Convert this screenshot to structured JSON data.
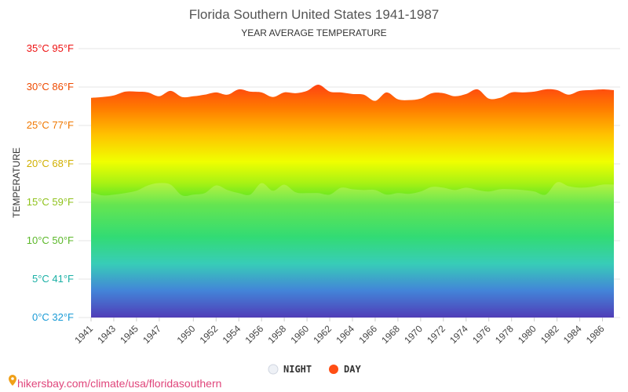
{
  "chart_data": {
    "type": "area",
    "title": "Florida Southern United States 1941-1987",
    "subtitle": "YEAR AVERAGE TEMPERATURE",
    "ylabel": "TEMPERATURE",
    "ylim": [
      0,
      35
    ],
    "y_ticks": [
      {
        "label": "0°C 32°F",
        "color": "#1a9bd6"
      },
      {
        "label": "5°C 41°F",
        "color": "#1ab0a5"
      },
      {
        "label": "10°C 50°F",
        "color": "#5cb82a"
      },
      {
        "label": "15°C 59°F",
        "color": "#8fc21c"
      },
      {
        "label": "20°C 68°F",
        "color": "#d1b000"
      },
      {
        "label": "25°C 77°F",
        "color": "#f07800"
      },
      {
        "label": "30°C 86°F",
        "color": "#ee4a00"
      },
      {
        "label": "35°C 95°F",
        "color": "#ee1111"
      }
    ],
    "x_tick_labels": [
      "1941",
      "1943",
      "1945",
      "1947",
      "1950",
      "1952",
      "1954",
      "1956",
      "1958",
      "1960",
      "1962",
      "1964",
      "1966",
      "1968",
      "1970",
      "1972",
      "1974",
      "1976",
      "1978",
      "1980",
      "1982",
      "1984",
      "1986"
    ],
    "x": [
      "1941",
      "1942",
      "1943",
      "1944",
      "1945",
      "1946",
      "1947",
      "1948",
      "1949",
      "1950",
      "1951",
      "1952",
      "1953",
      "1954",
      "1955",
      "1956",
      "1957",
      "1958",
      "1959",
      "1960",
      "1961",
      "1962",
      "1963",
      "1964",
      "1965",
      "1966",
      "1967",
      "1968",
      "1969",
      "1970",
      "1971",
      "1972",
      "1973",
      "1974",
      "1975",
      "1976",
      "1977",
      "1978",
      "1979",
      "1980",
      "1981",
      "1982",
      "1983",
      "1984",
      "1985",
      "1986",
      "1987"
    ],
    "series": [
      {
        "name": "NIGHT",
        "color": "#dde3ee",
        "values": [
          16.3,
          15.9,
          16.0,
          16.2,
          16.5,
          17.2,
          17.5,
          17.3,
          15.9,
          16.0,
          16.2,
          17.2,
          16.6,
          16.2,
          16.0,
          17.5,
          16.5,
          17.3,
          16.3,
          16.2,
          16.2,
          16.0,
          16.9,
          16.7,
          16.6,
          16.6,
          16.0,
          16.2,
          16.1,
          16.4,
          17.0,
          16.9,
          16.6,
          16.9,
          16.6,
          16.4,
          16.7,
          16.7,
          16.6,
          16.4,
          16.0,
          17.6,
          17.1,
          16.9,
          17.0,
          17.3,
          17.3
        ]
      },
      {
        "name": "DAY",
        "color": "#ff4e14",
        "values": [
          28.6,
          28.7,
          28.9,
          29.4,
          29.4,
          29.3,
          28.8,
          29.5,
          28.7,
          28.8,
          29.0,
          29.3,
          29.0,
          29.7,
          29.4,
          29.3,
          28.7,
          29.3,
          29.2,
          29.5,
          30.3,
          29.4,
          29.3,
          29.1,
          29.0,
          28.2,
          29.3,
          28.4,
          28.3,
          28.5,
          29.2,
          29.2,
          28.8,
          29.1,
          29.7,
          28.5,
          28.6,
          29.3,
          29.3,
          29.4,
          29.7,
          29.6,
          29.0,
          29.5,
          29.6,
          29.7,
          29.6
        ]
      }
    ]
  },
  "legend": [
    {
      "label": "NIGHT",
      "color": "#dde3ee"
    },
    {
      "label": "DAY",
      "color": "#ff4e14"
    }
  ],
  "source": {
    "icon": "map-pin-icon",
    "text": "hikersbay.com/climate/usa/floridasouthern"
  }
}
